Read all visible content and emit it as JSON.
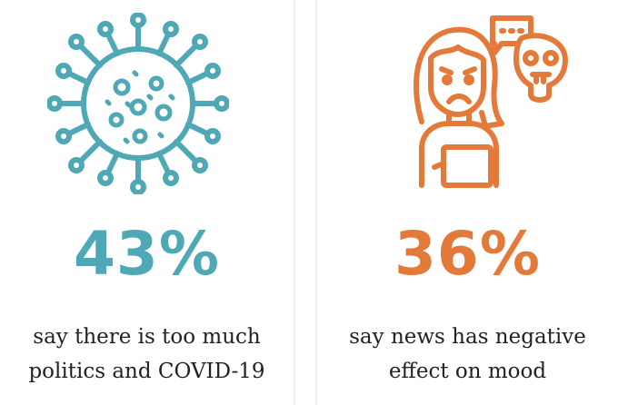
{
  "left": {
    "icon": "virus-icon",
    "color": "#4fa8b5",
    "percent": "43%",
    "caption_line1": "say there is too much",
    "caption_line2": "politics and COVID-19"
  },
  "right": {
    "icon": "sad-person-speech-bubble-icon",
    "color": "#e37a3a",
    "percent": "36%",
    "caption_line1": "say news has negative",
    "caption_line2": "effect on mood"
  }
}
